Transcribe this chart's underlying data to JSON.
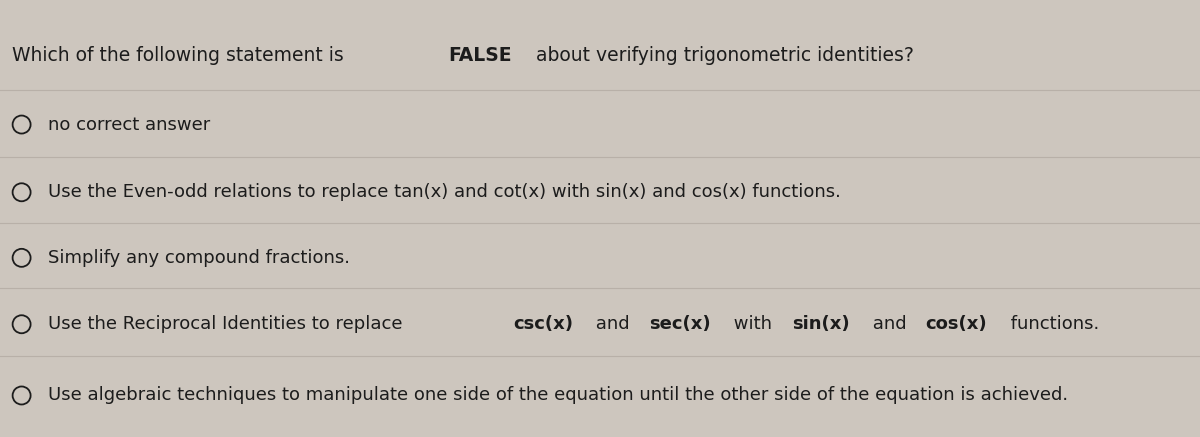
{
  "title_normal": "Which of the following statement is ",
  "title_bold": "FALSE",
  "title_rest": " about verifying trigonometric identities?",
  "options": [
    {
      "text": "no correct answer",
      "text_parts": null
    },
    {
      "text": "Use the Even-odd relations to replace tan(x) and cot(x) with sin(x) and cos(x) functions.",
      "text_parts": null
    },
    {
      "text": "Simplify any compound fractions.",
      "text_parts": null
    },
    {
      "text": null,
      "text_parts": [
        {
          "text": "Use the Reciprocal Identities to replace ",
          "bold": false
        },
        {
          "text": "csc(x)",
          "bold": true
        },
        {
          "text": " and ",
          "bold": false
        },
        {
          "text": "sec(x)",
          "bold": true
        },
        {
          "text": " with ",
          "bold": false
        },
        {
          "text": "sin(x)",
          "bold": true
        },
        {
          "text": " and ",
          "bold": false
        },
        {
          "text": "cos(x)",
          "bold": true
        },
        {
          "text": " functions.",
          "bold": false
        }
      ]
    },
    {
      "text": "Use algebraic techniques to manipulate one side of the equation until the other side of the equation is achieved.",
      "text_parts": null
    }
  ],
  "bg_color": "#cdc6be",
  "text_color": "#1c1c1c",
  "title_fontsize": 13.5,
  "option_fontsize": 13.0,
  "divider_color": "#b0a89f",
  "divider_alpha": 0.7
}
